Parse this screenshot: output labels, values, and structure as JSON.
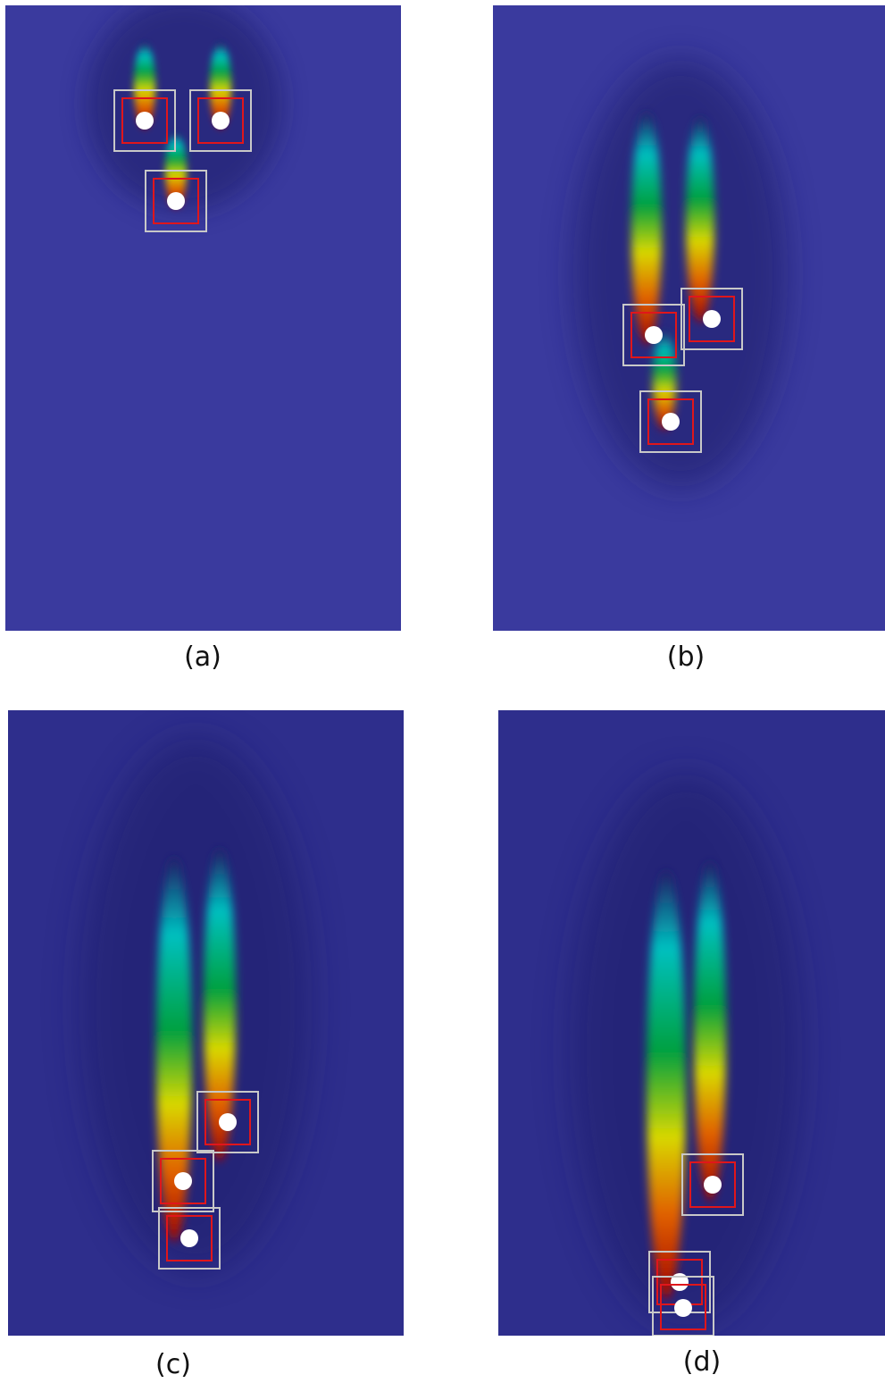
{
  "colors": {
    "background": "#3a3a9e",
    "halo": "#1e1e66",
    "outer_box": "#c8c8c8",
    "inner_box": "#e0161b",
    "particle": "#ffffff",
    "colormap": [
      "#000078",
      "#00c0c0",
      "#00a040",
      "#d8d800",
      "#e06000",
      "#a00000"
    ]
  },
  "panels": [
    {
      "label": "(a)"
    },
    {
      "label": "(b)"
    },
    {
      "label": "(c)"
    },
    {
      "label": "(d)"
    }
  ]
}
